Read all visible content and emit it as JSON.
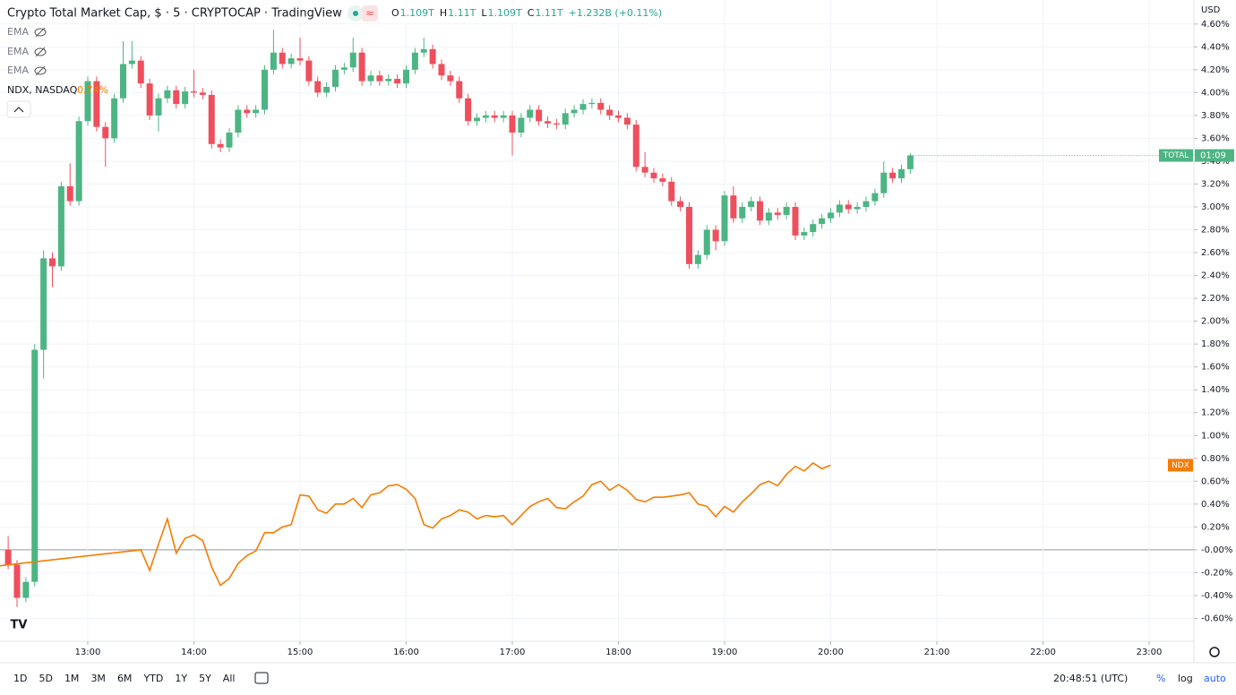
{
  "header": {
    "title": "Crypto Total Market Cap, $ · 5 · CRYPTOCAP · TradingView",
    "ohlc": [
      "O",
      "1.109T",
      "H",
      "1.11T",
      "L",
      "1.109T",
      "C",
      "1.11T",
      "+1.232B (+0.11%)"
    ]
  },
  "indicators": [
    "EMA",
    "EMA",
    "EMA"
  ],
  "compare": {
    "name": "NDX, NASDAQ",
    "value": "0.74%"
  },
  "currency": "USD",
  "toolbar": {
    "ranges": [
      "1D",
      "5D",
      "1M",
      "3M",
      "6M",
      "YTD",
      "1Y",
      "5Y",
      "All"
    ],
    "clock": "20:48:51 (UTC)",
    "options": [
      "%",
      "log",
      "auto"
    ]
  },
  "chart_data": {
    "type": "candlestick",
    "up_color": "#4cb583",
    "down_color": "#ee4f5d",
    "grid": true,
    "baseline": 0,
    "last_label": "TOTAL",
    "countdown": "01:09",
    "x": [
      "12:15",
      "12:20",
      "12:25",
      "12:30",
      "12:35",
      "12:40",
      "12:45",
      "12:50",
      "12:55",
      "13:00",
      "13:05",
      "13:10",
      "13:15",
      "13:20",
      "13:25",
      "13:30",
      "13:35",
      "13:40",
      "13:45",
      "13:50",
      "13:55",
      "14:00",
      "14:05",
      "14:10",
      "14:15",
      "14:20",
      "14:25",
      "14:30",
      "14:35",
      "14:40",
      "14:45",
      "14:50",
      "14:55",
      "15:00",
      "15:05",
      "15:10",
      "15:15",
      "15:20",
      "15:25",
      "15:30",
      "15:35",
      "15:40",
      "15:45",
      "15:50",
      "15:55",
      "16:00",
      "16:05",
      "16:10",
      "16:15",
      "16:20",
      "16:25",
      "16:30",
      "16:35",
      "16:40",
      "16:45",
      "16:50",
      "16:55",
      "17:00",
      "17:05",
      "17:10",
      "17:15",
      "17:20",
      "17:25",
      "17:30",
      "17:35",
      "17:40",
      "17:45",
      "17:50",
      "17:55",
      "18:00",
      "18:05",
      "18:10",
      "18:15",
      "18:20",
      "18:25",
      "18:30",
      "18:35",
      "18:40",
      "18:45",
      "18:50",
      "18:55",
      "19:00",
      "19:05",
      "19:10",
      "19:15",
      "19:20",
      "19:25",
      "19:30",
      "19:35",
      "19:40",
      "19:45",
      "19:50",
      "19:55",
      "20:00",
      "20:05",
      "20:10",
      "20:15",
      "20:20",
      "20:25",
      "20:30",
      "20:35",
      "20:40",
      "20:45"
    ],
    "open": [
      0.0,
      -0.13,
      -0.42,
      -0.28,
      1.75,
      2.55,
      2.48,
      3.18,
      3.05,
      3.75,
      4.1,
      3.7,
      3.6,
      3.95,
      4.25,
      4.28,
      4.08,
      3.8,
      3.95,
      4.02,
      3.9,
      4.01,
      4.0,
      3.98,
      3.55,
      3.52,
      3.65,
      3.85,
      3.82,
      3.85,
      4.2,
      4.35,
      4.25,
      4.3,
      4.28,
      4.1,
      4.0,
      4.05,
      4.2,
      4.22,
      4.35,
      4.1,
      4.15,
      4.1,
      4.12,
      4.08,
      4.2,
      4.35,
      4.38,
      4.25,
      4.15,
      4.1,
      3.95,
      3.75,
      3.78,
      3.8,
      3.78,
      3.8,
      3.65,
      3.78,
      3.85,
      3.75,
      3.73,
      3.72,
      3.82,
      3.85,
      3.9,
      3.91,
      3.85,
      3.8,
      3.78,
      3.72,
      3.35,
      3.3,
      3.25,
      3.22,
      3.05,
      3.0,
      2.5,
      2.58,
      2.8,
      2.7,
      3.1,
      2.9,
      3.0,
      3.05,
      2.88,
      2.95,
      2.93,
      3.0,
      2.75,
      2.78,
      2.85,
      2.9,
      2.95,
      3.02,
      2.98,
      3.0,
      3.05,
      3.12,
      3.3,
      3.25,
      3.33
    ],
    "high": [
      0.12,
      -0.09,
      -0.24,
      1.8,
      2.62,
      2.6,
      3.22,
      3.38,
      3.79,
      4.14,
      4.14,
      3.74,
      3.99,
      4.45,
      4.45,
      4.32,
      4.12,
      3.99,
      4.06,
      4.06,
      4.05,
      4.2,
      4.04,
      4.02,
      3.59,
      3.69,
      3.89,
      3.89,
      3.89,
      4.24,
      4.55,
      4.39,
      4.34,
      4.48,
      4.32,
      4.14,
      4.09,
      4.24,
      4.26,
      4.48,
      4.39,
      4.19,
      4.19,
      4.16,
      4.16,
      4.24,
      4.39,
      4.48,
      4.42,
      4.29,
      4.19,
      4.14,
      3.99,
      3.82,
      3.84,
      3.84,
      3.84,
      3.84,
      3.82,
      3.89,
      3.89,
      3.79,
      3.77,
      3.86,
      3.89,
      3.94,
      3.95,
      3.95,
      3.89,
      3.84,
      3.82,
      3.76,
      3.48,
      3.34,
      3.29,
      3.26,
      3.09,
      3.04,
      2.62,
      2.84,
      2.84,
      3.14,
      3.18,
      3.04,
      3.09,
      3.09,
      2.99,
      2.99,
      3.04,
      3.04,
      2.82,
      2.89,
      2.94,
      2.99,
      3.06,
      3.06,
      3.04,
      3.09,
      3.16,
      3.4,
      3.34,
      3.37,
      3.47
    ],
    "low": [
      -0.17,
      -0.5,
      -0.46,
      -0.32,
      1.5,
      2.3,
      2.44,
      3.01,
      3.01,
      3.71,
      3.66,
      3.35,
      3.56,
      3.91,
      4.21,
      4.04,
      3.76,
      3.66,
      3.91,
      3.86,
      3.86,
      3.96,
      3.94,
      3.51,
      3.48,
      3.48,
      3.61,
      3.78,
      3.78,
      3.81,
      4.16,
      4.21,
      4.21,
      4.24,
      4.06,
      3.96,
      3.96,
      4.01,
      4.16,
      4.18,
      4.06,
      4.06,
      4.06,
      4.06,
      4.04,
      4.04,
      4.16,
      4.31,
      4.21,
      4.11,
      4.06,
      3.91,
      3.71,
      3.71,
      3.74,
      3.74,
      3.74,
      3.45,
      3.61,
      3.74,
      3.71,
      3.69,
      3.68,
      3.68,
      3.78,
      3.81,
      3.86,
      3.81,
      3.76,
      3.74,
      3.68,
      3.31,
      3.26,
      3.21,
      3.18,
      3.01,
      2.96,
      2.46,
      2.46,
      2.54,
      2.62,
      2.66,
      2.86,
      2.86,
      2.96,
      2.84,
      2.84,
      2.89,
      2.89,
      2.71,
      2.71,
      2.74,
      2.81,
      2.86,
      2.91,
      2.94,
      2.94,
      2.96,
      3.01,
      3.08,
      3.21,
      3.21,
      3.29
    ],
    "close": [
      -0.13,
      -0.42,
      -0.28,
      1.75,
      2.55,
      2.48,
      3.18,
      3.05,
      3.75,
      4.1,
      3.7,
      3.6,
      3.95,
      4.25,
      4.28,
      4.08,
      3.8,
      3.95,
      4.02,
      3.9,
      4.01,
      4.0,
      3.98,
      3.55,
      3.52,
      3.65,
      3.85,
      3.82,
      3.85,
      4.2,
      4.35,
      4.25,
      4.3,
      4.28,
      4.1,
      4.0,
      4.05,
      4.2,
      4.22,
      4.35,
      4.1,
      4.15,
      4.1,
      4.12,
      4.08,
      4.2,
      4.35,
      4.38,
      4.25,
      4.15,
      4.1,
      3.95,
      3.75,
      3.78,
      3.8,
      3.78,
      3.8,
      3.65,
      3.78,
      3.85,
      3.75,
      3.73,
      3.72,
      3.82,
      3.85,
      3.9,
      3.91,
      3.85,
      3.8,
      3.78,
      3.72,
      3.35,
      3.3,
      3.25,
      3.22,
      3.05,
      3.0,
      2.5,
      2.58,
      2.8,
      2.7,
      3.1,
      2.9,
      3.0,
      3.05,
      2.88,
      2.95,
      2.93,
      3.0,
      2.75,
      2.78,
      2.85,
      2.9,
      2.95,
      3.02,
      2.98,
      3.0,
      3.05,
      3.12,
      3.3,
      3.25,
      3.33,
      3.45
    ],
    "overlay": {
      "name": "NDX",
      "color": "#f57c00",
      "x": [
        "12:10",
        "13:30",
        "13:35",
        "13:40",
        "13:45",
        "13:50",
        "13:55",
        "14:00",
        "14:05",
        "14:10",
        "14:15",
        "14:20",
        "14:25",
        "14:30",
        "14:35",
        "14:40",
        "14:45",
        "14:50",
        "14:55",
        "15:00",
        "15:05",
        "15:10",
        "15:15",
        "15:20",
        "15:25",
        "15:30",
        "15:35",
        "15:40",
        "15:45",
        "15:50",
        "15:55",
        "16:00",
        "16:05",
        "16:10",
        "16:15",
        "16:20",
        "16:25",
        "16:30",
        "16:35",
        "16:40",
        "16:45",
        "16:50",
        "16:55",
        "17:00",
        "17:05",
        "17:10",
        "17:15",
        "17:20",
        "17:25",
        "17:30",
        "17:35",
        "17:40",
        "17:45",
        "17:50",
        "17:55",
        "18:00",
        "18:05",
        "18:10",
        "18:15",
        "18:20",
        "18:25",
        "18:30",
        "18:35",
        "18:40",
        "18:45",
        "18:50",
        "18:55",
        "19:00",
        "19:05",
        "19:10",
        "19:15",
        "19:20",
        "19:25",
        "19:30",
        "19:35",
        "19:40",
        "19:45",
        "19:50",
        "19:55",
        "20:00"
      ],
      "values": [
        -0.14,
        0.0,
        -0.18,
        0.05,
        0.27,
        -0.03,
        0.1,
        0.13,
        0.08,
        -0.15,
        -0.31,
        -0.25,
        -0.12,
        -0.05,
        -0.01,
        0.15,
        0.15,
        0.2,
        0.22,
        0.48,
        0.47,
        0.35,
        0.32,
        0.4,
        0.4,
        0.45,
        0.37,
        0.48,
        0.5,
        0.56,
        0.57,
        0.53,
        0.45,
        0.22,
        0.19,
        0.27,
        0.3,
        0.35,
        0.33,
        0.27,
        0.3,
        0.29,
        0.3,
        0.22,
        0.3,
        0.38,
        0.42,
        0.45,
        0.37,
        0.36,
        0.42,
        0.47,
        0.57,
        0.6,
        0.52,
        0.57,
        0.52,
        0.44,
        0.42,
        0.46,
        0.46,
        0.47,
        0.48,
        0.5,
        0.4,
        0.38,
        0.29,
        0.38,
        0.33,
        0.42,
        0.49,
        0.57,
        0.6,
        0.56,
        0.66,
        0.73,
        0.69,
        0.76,
        0.71,
        0.74
      ]
    },
    "ylim": [
      -0.8,
      4.81
    ],
    "yticks": [
      {
        "value": 4.6,
        "label": "4.60%"
      },
      {
        "value": 4.4,
        "label": "4.40%"
      },
      {
        "value": 4.2,
        "label": "4.20%"
      },
      {
        "value": 4.0,
        "label": "4.00%"
      },
      {
        "value": 3.8,
        "label": "3.80%"
      },
      {
        "value": 3.6,
        "label": "3.60%"
      },
      {
        "value": 3.4,
        "label": "3.40%"
      },
      {
        "value": 3.2,
        "label": "3.20%"
      },
      {
        "value": 3.0,
        "label": "3.00%"
      },
      {
        "value": 2.8,
        "label": "2.80%"
      },
      {
        "value": 2.6,
        "label": "2.60%"
      },
      {
        "value": 2.4,
        "label": "2.40%"
      },
      {
        "value": 2.2,
        "label": "2.20%"
      },
      {
        "value": 2.0,
        "label": "2.00%"
      },
      {
        "value": 1.8,
        "label": "1.80%"
      },
      {
        "value": 1.6,
        "label": "1.60%"
      },
      {
        "value": 1.4,
        "label": "1.40%"
      },
      {
        "value": 1.2,
        "label": "1.20%"
      },
      {
        "value": 1.0,
        "label": "1.00%"
      },
      {
        "value": 0.8,
        "label": "0.80%"
      },
      {
        "value": 0.6,
        "label": "0.60%"
      },
      {
        "value": 0.4,
        "label": "0.40%"
      },
      {
        "value": 0.2,
        "label": "0.20%"
      },
      {
        "value": 0,
        "label": "-0.00%"
      },
      {
        "value": -0.2,
        "label": "-0.20%"
      },
      {
        "value": -0.4,
        "label": "-0.40%"
      },
      {
        "value": -0.6,
        "label": "-0.60%"
      }
    ],
    "xticks": [
      "13:00",
      "14:00",
      "15:00",
      "16:00",
      "17:00",
      "18:00",
      "19:00",
      "20:00",
      "21:00",
      "22:00",
      "23:00"
    ]
  }
}
